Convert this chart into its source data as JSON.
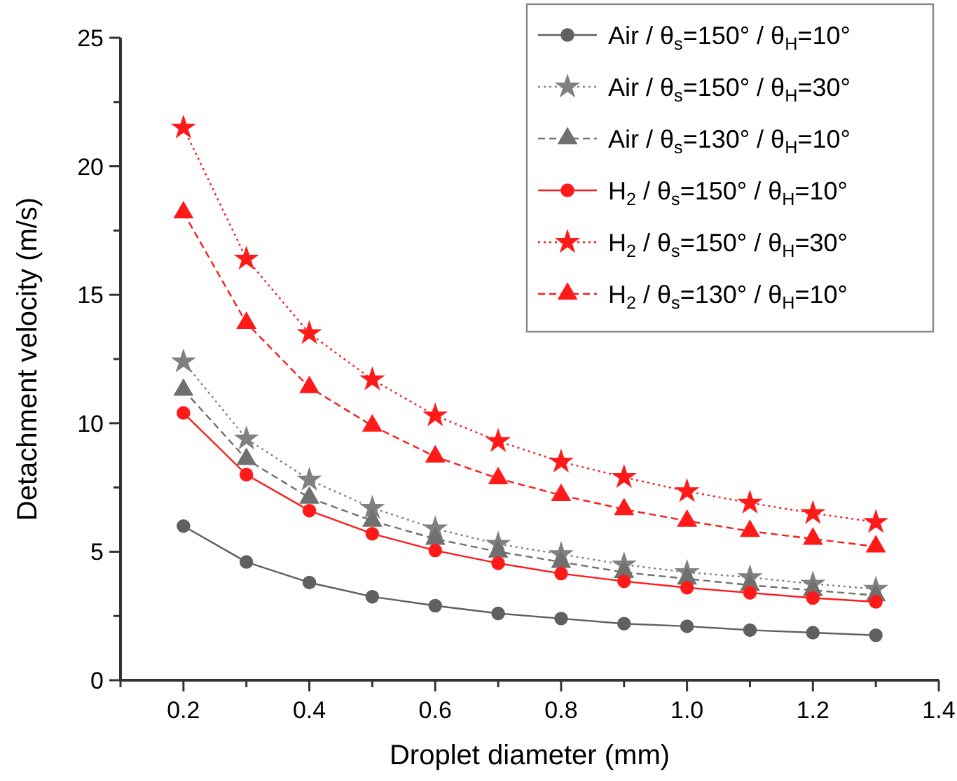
{
  "chart_data": {
    "type": "line",
    "xlabel": "Droplet diameter (mm)",
    "ylabel": "Detachment velocity (m/s)",
    "x": [
      0.2,
      0.3,
      0.4,
      0.5,
      0.6,
      0.7,
      0.8,
      0.9,
      1.0,
      1.1,
      1.2,
      1.3
    ],
    "series": [
      {
        "name": "Air / θ$_{s}$=150° / θ$_{H}$=10°",
        "color": "#606060",
        "marker": "circle",
        "line_style": "solid",
        "values": [
          6.0,
          4.6,
          3.8,
          3.25,
          2.9,
          2.6,
          2.4,
          2.2,
          2.1,
          1.95,
          1.85,
          1.75
        ]
      },
      {
        "name": "Air / θ$_{s}$=150° / θ$_{H}$=30°",
        "color": "#808080",
        "marker": "star",
        "line_style": "dotted",
        "values": [
          12.4,
          9.4,
          7.8,
          6.7,
          5.9,
          5.3,
          4.9,
          4.5,
          4.2,
          4.0,
          3.75,
          3.55
        ]
      },
      {
        "name": "Air / θ$_{s}$=130° / θ$_{H}$=10°",
        "color": "#707070",
        "marker": "triangle",
        "line_style": "dashed",
        "values": [
          11.3,
          8.6,
          7.1,
          6.2,
          5.5,
          5.0,
          4.6,
          4.2,
          3.95,
          3.7,
          3.5,
          3.3
        ]
      },
      {
        "name": "H$_{2}$ / θ$_{s}$=150° / θ$_{H}$=10°",
        "color": "#ff1a1a",
        "marker": "circle",
        "line_style": "solid",
        "values": [
          10.4,
          8.0,
          6.6,
          5.7,
          5.05,
          4.55,
          4.15,
          3.85,
          3.6,
          3.4,
          3.2,
          3.05
        ]
      },
      {
        "name": "H$_{2}$ / θ$_{s}$=150° / θ$_{H}$=30°",
        "color": "#ff1a1a",
        "marker": "star",
        "line_style": "dotted",
        "values": [
          21.5,
          16.4,
          13.5,
          11.7,
          10.3,
          9.3,
          8.5,
          7.9,
          7.35,
          6.9,
          6.5,
          6.15
        ]
      },
      {
        "name": "H$_{2}$ / θ$_{s}$=130° / θ$_{H}$=10°",
        "color": "#ff1a1a",
        "marker": "triangle",
        "line_style": "dashed",
        "values": [
          18.2,
          13.9,
          11.4,
          9.9,
          8.7,
          7.85,
          7.2,
          6.65,
          6.2,
          5.8,
          5.5,
          5.2
        ]
      }
    ],
    "xlim": [
      0.1,
      1.4
    ],
    "xticks": [
      {
        "value": 0.1,
        "label": null
      },
      0.2,
      {
        "value": 0.3,
        "label": null
      },
      0.4,
      {
        "value": 0.5,
        "label": null
      },
      0.6,
      {
        "value": 0.7,
        "label": null
      },
      0.8,
      {
        "value": 0.9,
        "label": null
      },
      {
        "value": 1,
        "label": "1.0"
      },
      {
        "value": 1.1,
        "label": null
      },
      1.2,
      {
        "value": 1.3,
        "label": null
      },
      1.4
    ],
    "ylim": [
      0,
      25
    ],
    "yticks": [
      0,
      {
        "value": 2.5,
        "label": null
      },
      5,
      {
        "value": 7.5,
        "label": null
      },
      10,
      {
        "value": 12.5,
        "label": null
      },
      15,
      {
        "value": 17.5,
        "label": null
      },
      20,
      {
        "value": 22.5,
        "label": null
      },
      25
    ],
    "grid": false,
    "legend": "top right"
  }
}
